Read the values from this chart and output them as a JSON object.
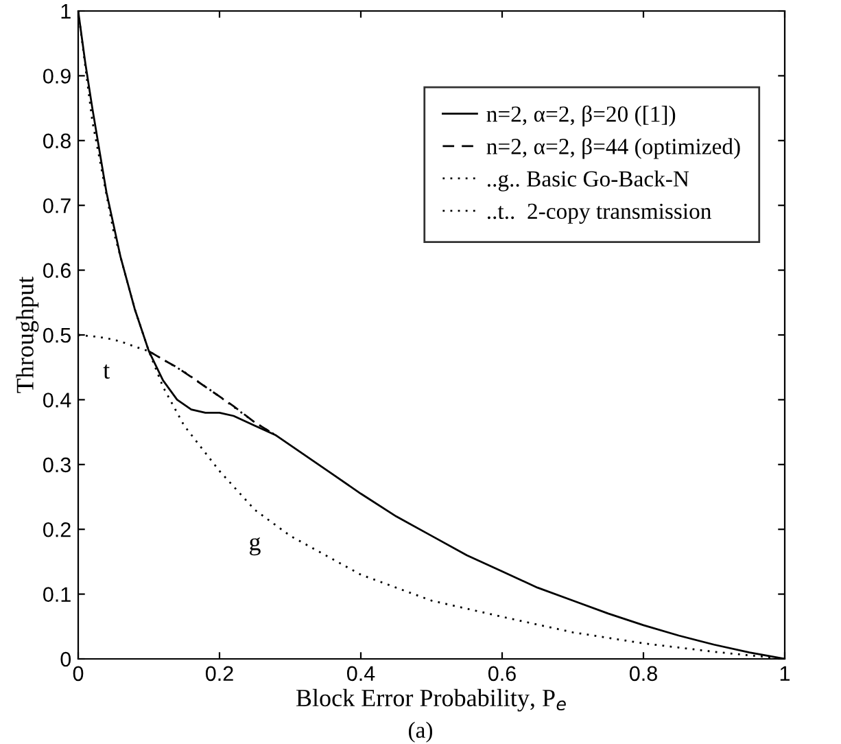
{
  "chart_data": {
    "type": "line",
    "xlabel": "Block Error Probability, P$_{e}$",
    "ylabel": "Throughput",
    "xlim": [
      0,
      1
    ],
    "ylim": [
      0,
      1
    ],
    "xticks": [
      0,
      0.2,
      0.4,
      0.6,
      0.8,
      1
    ],
    "yticks": [
      0,
      0.1,
      0.2,
      0.3,
      0.4,
      0.5,
      0.6,
      0.7,
      0.8,
      0.9,
      1
    ],
    "grid": false,
    "legend": "top right",
    "marker": "none",
    "series": [
      {
        "name": "n=2, α=2, β=20 ([1])",
        "color": "#000000",
        "line_style": "solid",
        "x": [
          0,
          0.01,
          0.02,
          0.04,
          0.06,
          0.08,
          0.1,
          0.12,
          0.14,
          0.16,
          0.18,
          0.2,
          0.22,
          0.25,
          0.28,
          0.32,
          0.36,
          0.4,
          0.45,
          0.5,
          0.55,
          0.6,
          0.65,
          0.7,
          0.75,
          0.8,
          0.85,
          0.9,
          0.95,
          1
        ],
        "values": [
          1,
          0.92,
          0.85,
          0.72,
          0.62,
          0.54,
          0.475,
          0.43,
          0.4,
          0.385,
          0.38,
          0.38,
          0.375,
          0.36,
          0.345,
          0.315,
          0.285,
          0.255,
          0.22,
          0.19,
          0.16,
          0.135,
          0.11,
          0.09,
          0.07,
          0.052,
          0.036,
          0.022,
          0.01,
          0
        ]
      },
      {
        "name": "n=2, α=2, β=44 (optimized)",
        "color": "#000000",
        "line_style": "dashed",
        "x": [
          0.1,
          0.12,
          0.14,
          0.16,
          0.18,
          0.2,
          0.22,
          0.25,
          0.28
        ],
        "values": [
          0.475,
          0.462,
          0.45,
          0.435,
          0.42,
          0.405,
          0.39,
          0.365,
          0.345
        ]
      },
      {
        "name": "..g.. Basic Go-Back-N",
        "color": "#000000",
        "line_style": "dotted",
        "x": [
          0,
          0.02,
          0.05,
          0.08,
          0.1,
          0.12,
          0.15,
          0.2,
          0.25,
          0.3,
          0.35,
          0.4,
          0.5,
          0.6,
          0.7,
          0.8,
          0.9,
          1
        ],
        "values": [
          1,
          0.83,
          0.66,
          0.54,
          0.475,
          0.42,
          0.36,
          0.29,
          0.23,
          0.19,
          0.16,
          0.13,
          0.09,
          0.065,
          0.041,
          0.024,
          0.011,
          0
        ]
      },
      {
        "name": "..t..  2-copy transmission",
        "color": "#000000",
        "line_style": "dotted",
        "x": [
          0,
          0.02,
          0.04,
          0.06,
          0.08,
          0.1,
          0.15,
          0.2,
          0.25,
          0.28
        ],
        "values": [
          0.5,
          0.498,
          0.495,
          0.49,
          0.482,
          0.475,
          0.443,
          0.405,
          0.365,
          0.345
        ]
      }
    ],
    "annotations": [
      {
        "text": "t",
        "x": 0.04,
        "y": 0.495
      },
      {
        "text": "g",
        "x": 0.25,
        "y": 0.23
      },
      "(a)"
    ]
  }
}
